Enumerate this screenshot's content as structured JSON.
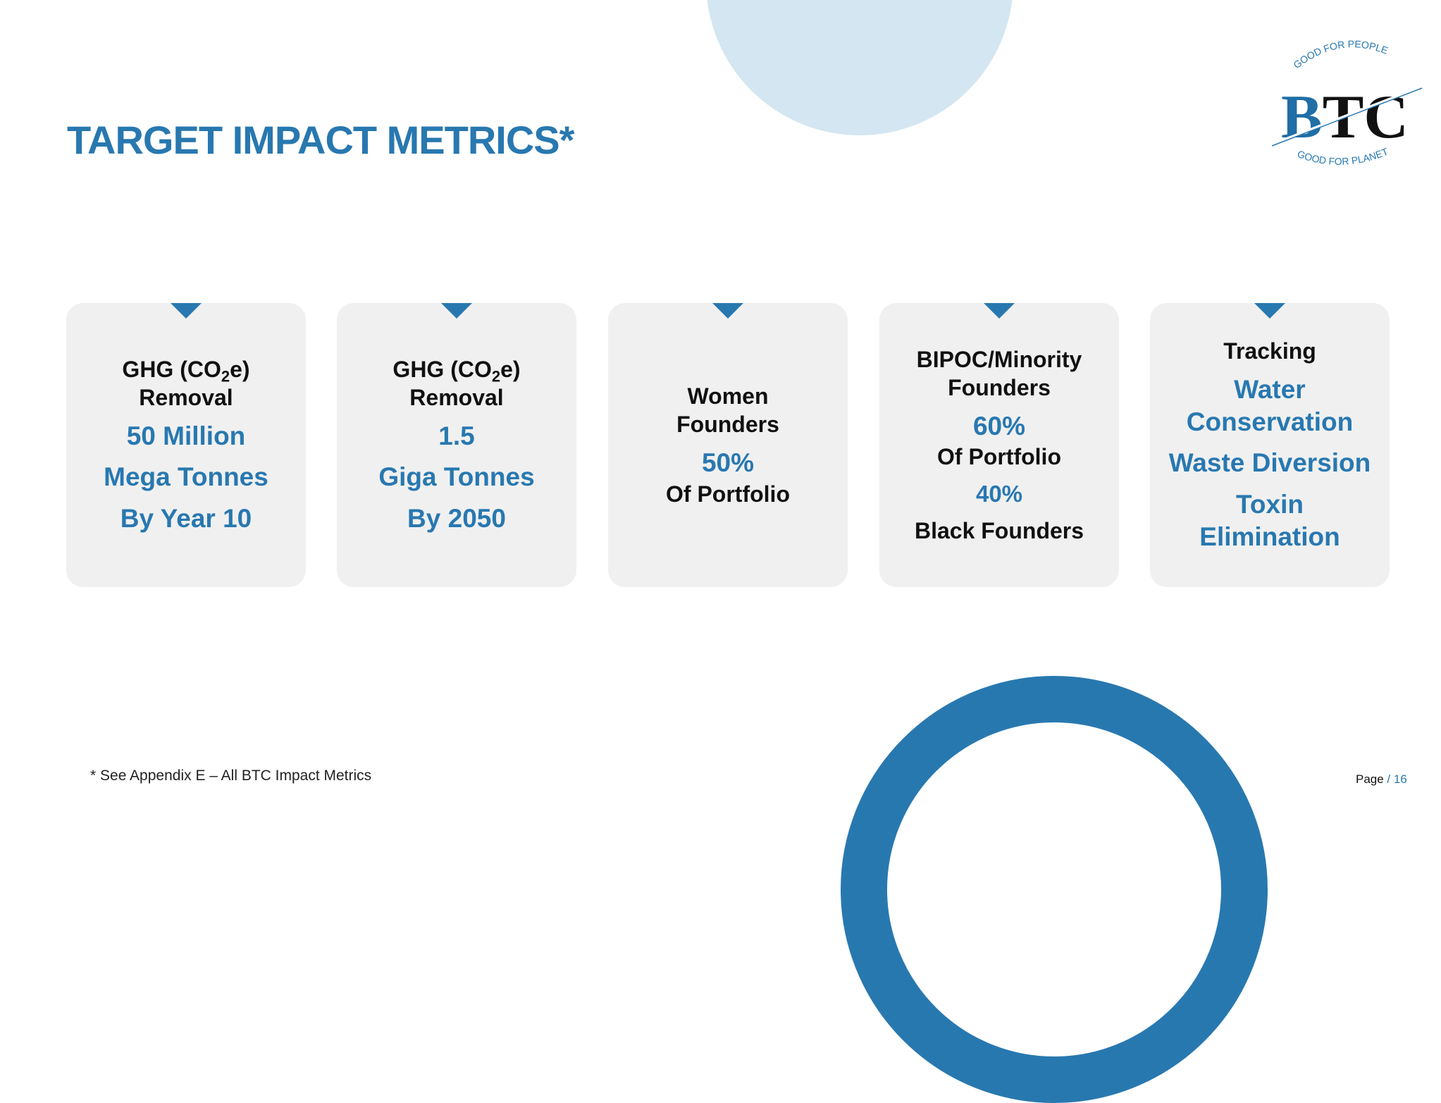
{
  "title": "TARGET IMPACT METRICS*",
  "logo": {
    "text": "BTC",
    "top_arc": "GOOD FOR PEOPLE",
    "bottom_arc": "GOOD FOR PLANET"
  },
  "colors": {
    "accent": "#2878b0",
    "light_circle": "#d4e6f1",
    "card_bg": "#f0f0f0"
  },
  "cards": [
    {
      "head_a": "GHG (CO",
      "head_sub": "2",
      "head_b": "e)",
      "head_2": "Removal",
      "l1": "50 Million",
      "l2": "Mega Tonnes",
      "l3": "By Year 10"
    },
    {
      "head_a": "GHG (CO",
      "head_sub": "2",
      "head_b": "e)",
      "head_2": "Removal",
      "l1": "1.5",
      "l2": "Giga Tonnes",
      "l3": "By 2050"
    },
    {
      "h1": "Women",
      "h2": "Founders",
      "v1": "50%",
      "d1": "Of Portfolio"
    },
    {
      "h1": "BIPOC/Minority",
      "h2": "Founders",
      "v1": "60%",
      "d1": "Of Portfolio",
      "v2": "40%",
      "d2": "Black Founders"
    },
    {
      "h1": "Tracking",
      "b1": "Water",
      "b2": "Conservation",
      "b3": "Waste Diversion",
      "b4": "Toxin",
      "b5": "Elimination"
    }
  ],
  "footnote": "* See Appendix E – All BTC Impact Metrics",
  "page": {
    "label": "Page",
    "sep": " / ",
    "number": "16"
  }
}
